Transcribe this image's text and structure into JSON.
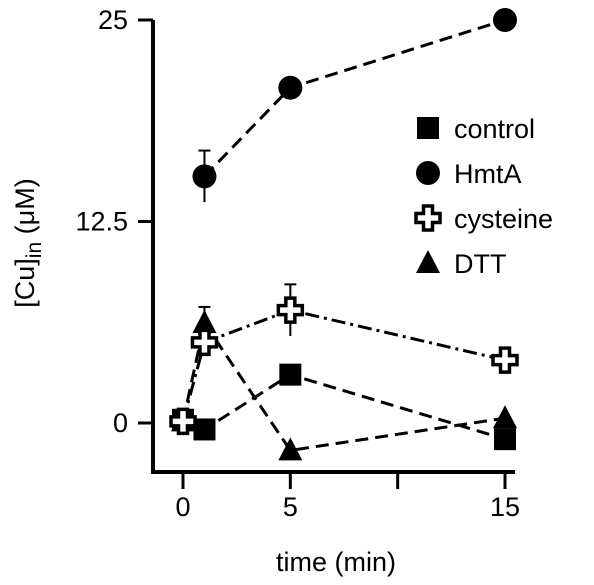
{
  "chart_data": {
    "type": "line",
    "xlabel": "time (min)",
    "ylabel": "[Cu]in (μM)",
    "ylabel_parts": {
      "pre": "[Cu]",
      "sub": "in",
      "post": " (μM)"
    },
    "xlim": [
      -1.5,
      15
    ],
    "ylim": [
      -3.5,
      25
    ],
    "x_ticks": [
      0,
      5,
      15
    ],
    "x_tick_labels": [
      "0",
      "5",
      "15"
    ],
    "y_ticks": [
      0,
      12.5,
      25
    ],
    "y_tick_labels": [
      "0",
      "12.5",
      "25"
    ],
    "grid": false,
    "legend_position": "right",
    "series": [
      {
        "name": "control",
        "marker": "square",
        "line": "dashed",
        "x": [
          0,
          1,
          5,
          15
        ],
        "y": [
          0.2,
          -0.4,
          3.0,
          -1.0
        ],
        "err": [
          0,
          0,
          0,
          0
        ]
      },
      {
        "name": "HmtA",
        "marker": "circle",
        "line": "dashed",
        "x": [
          1,
          5,
          15
        ],
        "y": [
          15.3,
          20.8,
          25.0
        ],
        "err": [
          1.6,
          0,
          0.5
        ]
      },
      {
        "name": "cysteine",
        "marker": "cross",
        "line": "dashdot",
        "x": [
          0,
          1,
          5,
          15
        ],
        "y": [
          0.1,
          5.0,
          7.0,
          3.9
        ],
        "err": [
          0,
          0,
          1.6,
          0
        ]
      },
      {
        "name": "DTT",
        "marker": "triangle",
        "line": "dashed",
        "x": [
          0,
          1,
          5,
          15
        ],
        "y": [
          0.1,
          6.2,
          -1.7,
          0.3
        ],
        "err": [
          0,
          1.0,
          0,
          0
        ]
      }
    ],
    "legend": [
      {
        "name": "control",
        "marker": "square"
      },
      {
        "name": "HmtA",
        "marker": "circle"
      },
      {
        "name": "cysteine",
        "marker": "cross"
      },
      {
        "name": "DTT",
        "marker": "triangle"
      }
    ],
    "colors": {
      "ink": "#000000",
      "background": "#ffffff"
    }
  }
}
